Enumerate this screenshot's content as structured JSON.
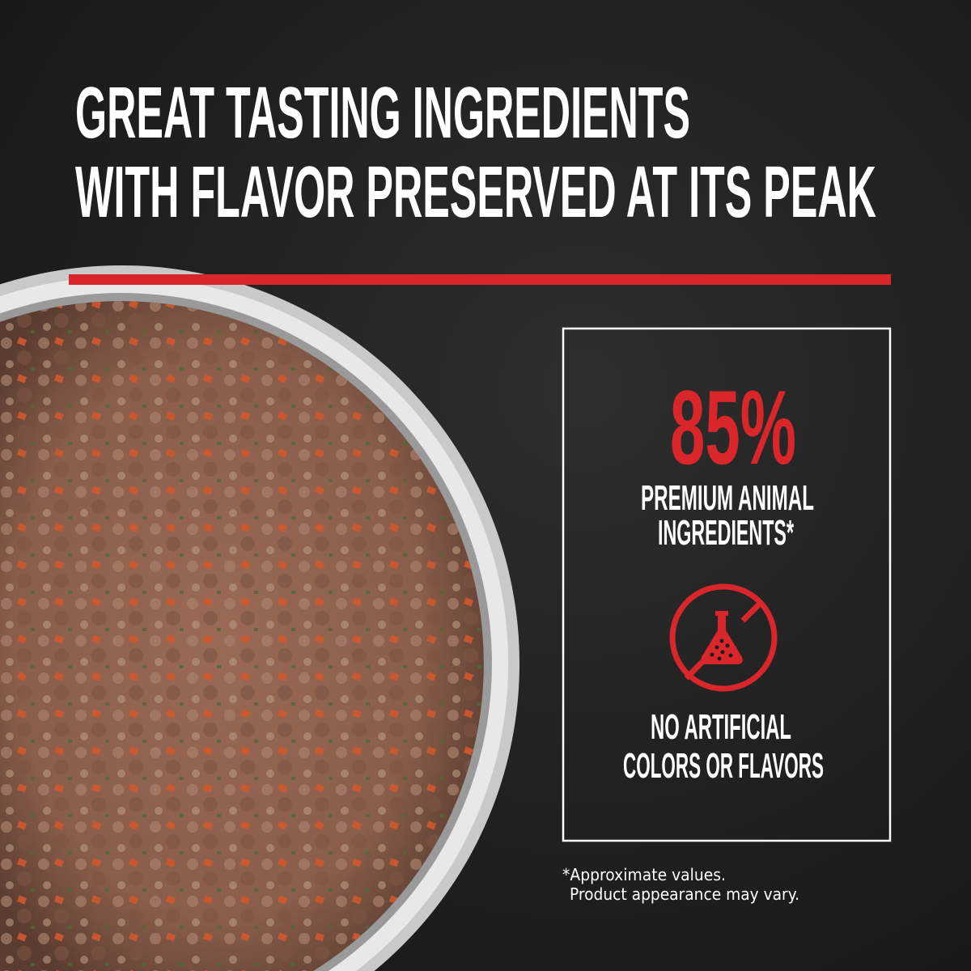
{
  "headline": {
    "line1": "GREAT TASTING INGREDIENTS",
    "line2": "WITH FLAVOR PRESERVED AT ITS PEAK"
  },
  "stats_box": {
    "percent": "85%",
    "percent_label_line1": "PREMIUM ANIMAL",
    "percent_label_line2": "INGREDIENTS*",
    "icon": "no-artificial-flask-icon",
    "claim_line1": "NO ARTIFICIAL",
    "claim_line2": "COLORS OR FLAVORS"
  },
  "footnote": {
    "line1": "*Approximate values.",
    "line2": "Product appearance may vary."
  },
  "colors": {
    "accent_red": "#d9262a",
    "background": "#222222",
    "text": "#ffffff"
  }
}
